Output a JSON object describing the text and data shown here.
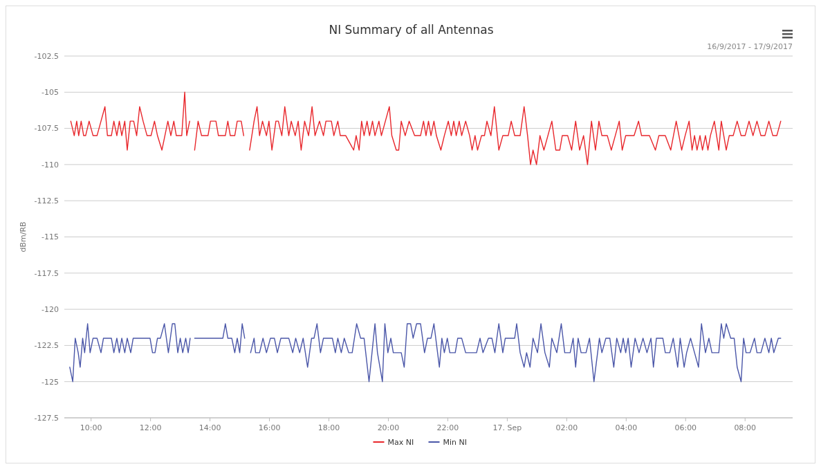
{
  "chart_data": {
    "type": "line",
    "title": "NI Summary of all Antennas",
    "subtitle": "16/9/2017 - 17/9/2017",
    "ylabel": "dBm/RB",
    "xlim": [
      "2017-09-16T09:06",
      "2017-09-17T09:36"
    ],
    "xticks": [
      {
        "value": "2017-09-16T10:00",
        "label": "10:00"
      },
      {
        "value": "2017-09-16T12:00",
        "label": "12:00"
      },
      {
        "value": "2017-09-16T14:00",
        "label": "14:00"
      },
      {
        "value": "2017-09-16T16:00",
        "label": "16:00"
      },
      {
        "value": "2017-09-16T18:00",
        "label": "18:00"
      },
      {
        "value": "2017-09-16T20:00",
        "label": "20:00"
      },
      {
        "value": "2017-09-16T22:00",
        "label": "22:00"
      },
      {
        "value": "2017-09-17T00:00",
        "label": "17. Sep"
      },
      {
        "value": "2017-09-17T02:00",
        "label": "02:00"
      },
      {
        "value": "2017-09-17T04:00",
        "label": "04:00"
      },
      {
        "value": "2017-09-17T06:00",
        "label": "06:00"
      },
      {
        "value": "2017-09-17T08:00",
        "label": "08:00"
      }
    ],
    "ylim": [
      -127.5,
      -102.5
    ],
    "yticks": [
      -127.5,
      -125,
      -122.5,
      -120,
      -117.5,
      -115,
      -112.5,
      -110,
      -107.5,
      -105,
      -102.5
    ],
    "grid": "y",
    "legend": "bottom",
    "series": [
      {
        "name": "Max NI",
        "color": "#e8262b",
        "x": [
          "2017-09-16T09:19",
          "2017-09-16T09:26",
          "2017-09-16T09:31",
          "2017-09-16T09:35",
          "2017-09-16T09:40",
          "2017-09-16T09:45",
          "2017-09-16T09:49",
          "2017-09-16T09:56",
          "2017-09-16T10:04",
          "2017-09-16T10:12",
          "2017-09-16T10:20",
          "2017-09-16T10:28",
          "2017-09-16T10:33",
          "2017-09-16T10:41",
          "2017-09-16T10:46",
          "2017-09-16T10:52",
          "2017-09-16T10:57",
          "2017-09-16T11:02",
          "2017-09-16T11:08",
          "2017-09-16T11:13",
          "2017-09-16T11:19",
          "2017-09-16T11:26",
          "2017-09-16T11:32",
          "2017-09-16T11:38",
          "2017-09-16T11:45",
          "2017-09-16T11:53",
          "2017-09-16T12:01",
          "2017-09-16T12:08",
          "2017-09-16T12:14",
          "2017-09-16T12:23",
          "2017-09-16T12:29",
          "2017-09-16T12:35",
          "2017-09-16T12:41",
          "2017-09-16T12:47",
          "2017-09-16T12:52",
          "2017-09-16T13:03",
          "2017-09-16T13:09",
          "2017-09-16T13:13",
          "2017-09-16T13:19",
          "2017-09-16T13:24",
          "2017-09-16T13:29",
          "2017-09-16T13:36",
          "2017-09-16T13:43",
          "2017-09-16T13:56",
          "2017-09-16T14:01",
          "2017-09-16T14:12",
          "2017-09-16T14:17",
          "2017-09-16T14:31",
          "2017-09-16T14:36",
          "2017-09-16T14:41",
          "2017-09-16T14:50",
          "2017-09-16T14:55",
          "2017-09-16T15:03",
          "2017-09-16T15:08",
          "2017-09-16T15:15",
          "2017-09-16T15:20",
          "2017-09-16T15:29",
          "2017-09-16T15:35",
          "2017-09-16T15:40",
          "2017-09-16T15:46",
          "2017-09-16T15:54",
          "2017-09-16T15:59",
          "2017-09-16T16:05",
          "2017-09-16T16:13",
          "2017-09-16T16:18",
          "2017-09-16T16:25",
          "2017-09-16T16:31",
          "2017-09-16T16:39",
          "2017-09-16T16:44",
          "2017-09-16T16:52",
          "2017-09-16T16:58",
          "2017-09-16T17:04",
          "2017-09-16T17:11",
          "2017-09-16T17:19",
          "2017-09-16T17:26",
          "2017-09-16T17:32",
          "2017-09-16T17:41",
          "2017-09-16T17:49",
          "2017-09-16T17:54",
          "2017-09-16T18:05",
          "2017-09-16T18:10",
          "2017-09-16T18:18",
          "2017-09-16T18:23",
          "2017-09-16T18:34",
          "2017-09-16T18:50",
          "2017-09-16T18:55",
          "2017-09-16T19:01",
          "2017-09-16T19:06",
          "2017-09-16T19:11",
          "2017-09-16T19:17",
          "2017-09-16T19:22",
          "2017-09-16T19:28",
          "2017-09-16T19:33",
          "2017-09-16T19:41",
          "2017-09-16T19:46",
          "2017-09-16T19:54",
          "2017-09-16T20:02",
          "2017-09-16T20:07",
          "2017-09-16T20:16",
          "2017-09-16T20:21",
          "2017-09-16T20:26",
          "2017-09-16T20:34",
          "2017-09-16T20:42",
          "2017-09-16T20:53",
          "2017-09-16T20:57",
          "2017-09-16T21:05",
          "2017-09-16T21:11",
          "2017-09-16T21:16",
          "2017-09-16T21:21",
          "2017-09-16T21:26",
          "2017-09-16T21:32",
          "2017-09-16T21:37",
          "2017-09-16T21:46",
          "2017-09-16T21:53",
          "2017-09-16T22:01",
          "2017-09-16T22:07",
          "2017-09-16T22:12",
          "2017-09-16T22:17",
          "2017-09-16T22:23",
          "2017-09-16T22:28",
          "2017-09-16T22:36",
          "2017-09-16T22:44",
          "2017-09-16T22:49",
          "2017-09-16T22:55",
          "2017-09-16T23:00",
          "2017-09-16T23:08",
          "2017-09-16T23:14",
          "2017-09-16T23:19",
          "2017-09-16T23:27",
          "2017-09-16T23:34",
          "2017-09-16T23:43",
          "2017-09-16T23:51",
          "2017-09-17T00:02",
          "2017-09-17T00:08",
          "2017-09-17T00:15",
          "2017-09-17T00:26",
          "2017-09-17T00:34",
          "2017-09-17T00:41",
          "2017-09-17T00:47",
          "2017-09-17T00:52",
          "2017-09-17T00:59",
          "2017-09-17T01:06",
          "2017-09-17T01:14",
          "2017-09-17T01:22",
          "2017-09-17T01:30",
          "2017-09-17T01:38",
          "2017-09-17T01:46",
          "2017-09-17T01:51",
          "2017-09-17T02:02",
          "2017-09-17T02:10",
          "2017-09-17T02:18",
          "2017-09-17T02:26",
          "2017-09-17T02:34",
          "2017-09-17T02:42",
          "2017-09-17T02:50",
          "2017-09-17T02:58",
          "2017-09-17T03:05",
          "2017-09-17T03:11",
          "2017-09-17T03:22",
          "2017-09-17T03:30",
          "2017-09-17T03:38",
          "2017-09-17T03:46",
          "2017-09-17T03:52",
          "2017-09-17T03:59",
          "2017-09-17T04:16",
          "2017-09-17T04:25",
          "2017-09-17T04:31",
          "2017-09-17T04:47",
          "2017-09-17T04:59",
          "2017-09-17T05:06",
          "2017-09-17T05:19",
          "2017-09-17T05:30",
          "2017-09-17T05:41",
          "2017-09-17T05:52",
          "2017-09-17T05:59",
          "2017-09-17T06:07",
          "2017-09-17T06:13",
          "2017-09-17T06:18",
          "2017-09-17T06:23",
          "2017-09-17T06:29",
          "2017-09-17T06:34",
          "2017-09-17T06:40",
          "2017-09-17T06:45",
          "2017-09-17T06:50",
          "2017-09-17T06:58",
          "2017-09-17T07:07",
          "2017-09-17T07:12",
          "2017-09-17T07:22",
          "2017-09-17T07:28",
          "2017-09-17T07:36",
          "2017-09-17T07:44",
          "2017-09-17T07:52",
          "2017-09-17T08:00",
          "2017-09-17T08:08",
          "2017-09-17T08:16",
          "2017-09-17T08:24",
          "2017-09-17T08:32",
          "2017-09-17T08:40",
          "2017-09-17T08:48",
          "2017-09-17T08:56",
          "2017-09-17T09:04",
          "2017-09-17T09:12"
        ],
        "values": [
          -107,
          -108,
          -107,
          -108,
          -107,
          -108,
          -108,
          -107,
          -108,
          -108,
          -107,
          -106,
          -108,
          -108,
          -107,
          -108,
          -107,
          -108,
          -107,
          -109,
          -107,
          -107,
          -108,
          -106,
          -107,
          -108,
          -108,
          -107,
          -108,
          -109,
          -108,
          -107,
          -108,
          -107,
          -108,
          -108,
          -105,
          -108,
          -107,
          null,
          -109,
          -107,
          -108,
          -108,
          -107,
          -107,
          -108,
          -108,
          -107,
          -108,
          -108,
          -107,
          -107,
          -108,
          null,
          -109,
          -107,
          -106,
          -108,
          -107,
          -108,
          -107,
          -109,
          -107,
          -107,
          -108,
          -106,
          -108,
          -107,
          -108,
          -107,
          -109,
          -107,
          -108,
          -106,
          -108,
          -107,
          -108,
          -107,
          -107,
          -108,
          -107,
          -108,
          -108,
          -109,
          -108,
          -109,
          -107,
          -108,
          -107,
          -108,
          -107,
          -108,
          -107,
          -108,
          -107,
          -106,
          -108,
          -109,
          -109,
          -107,
          -108,
          -107,
          -108,
          -108,
          -108,
          -107,
          -108,
          -107,
          -108,
          -107,
          -108,
          -109,
          -108,
          -107,
          -108,
          -107,
          -108,
          -107,
          -108,
          -107,
          -108,
          -109,
          -108,
          -109,
          -108,
          -108,
          -107,
          -108,
          -106,
          -109,
          -108,
          -108,
          -107,
          -108,
          -108,
          -106,
          -108,
          -110,
          -109,
          -110,
          -108,
          -109,
          -108,
          -107,
          -109,
          -109,
          -108,
          -108,
          -109,
          -107,
          -109,
          -108,
          -110,
          -107,
          -109,
          -107,
          -108,
          -108,
          -109,
          -108,
          -107,
          -109,
          -108,
          -108,
          -107,
          -108,
          -108,
          -109,
          -108,
          -108,
          -109,
          -107,
          -109,
          -108,
          -107,
          -109,
          -108,
          -109,
          -108,
          -109,
          -108,
          -109,
          -108,
          -107,
          -109,
          -107,
          -109,
          -108,
          -108,
          -107,
          -108,
          -108,
          -107,
          -108,
          -107,
          -108,
          -108,
          -107,
          -108,
          -108,
          -107
        ]
      },
      {
        "name": "Min NI",
        "color": "#4a56a8",
        "x": [
          "2017-09-16T09:17",
          "2017-09-16T09:23",
          "2017-09-16T09:28",
          "2017-09-16T09:34",
          "2017-09-16T09:38",
          "2017-09-16T09:43",
          "2017-09-16T09:47",
          "2017-09-16T09:53",
          "2017-09-16T09:58",
          "2017-09-16T10:04",
          "2017-09-16T10:12",
          "2017-09-16T10:20",
          "2017-09-16T10:25",
          "2017-09-16T10:41",
          "2017-09-16T10:46",
          "2017-09-16T10:52",
          "2017-09-16T10:57",
          "2017-09-16T11:02",
          "2017-09-16T11:08",
          "2017-09-16T11:13",
          "2017-09-16T11:20",
          "2017-09-16T11:25",
          "2017-09-16T11:59",
          "2017-09-16T12:04",
          "2017-09-16T12:09",
          "2017-09-16T12:14",
          "2017-09-16T12:20",
          "2017-09-16T12:28",
          "2017-09-16T12:36",
          "2017-09-16T12:44",
          "2017-09-16T12:49",
          "2017-09-16T12:55",
          "2017-09-16T13:00",
          "2017-09-16T13:05",
          "2017-09-16T13:11",
          "2017-09-16T13:16",
          "2017-09-16T13:20",
          "2017-09-16T13:24",
          "2017-09-16T13:29",
          "2017-09-16T14:26",
          "2017-09-16T14:31",
          "2017-09-16T14:36",
          "2017-09-16T14:44",
          "2017-09-16T14:50",
          "2017-09-16T14:55",
          "2017-09-16T15:00",
          "2017-09-16T15:05",
          "2017-09-16T15:10",
          "2017-09-16T15:15",
          "2017-09-16T15:22",
          "2017-09-16T15:29",
          "2017-09-16T15:32",
          "2017-09-16T15:40",
          "2017-09-16T15:47",
          "2017-09-16T15:54",
          "2017-09-16T16:02",
          "2017-09-16T16:10",
          "2017-09-16T16:16",
          "2017-09-16T16:23",
          "2017-09-16T16:39",
          "2017-09-16T16:47",
          "2017-09-16T16:53",
          "2017-09-16T17:01",
          "2017-09-16T17:08",
          "2017-09-16T17:17",
          "2017-09-16T17:25",
          "2017-09-16T17:30",
          "2017-09-16T17:36",
          "2017-09-16T17:43",
          "2017-09-16T17:49",
          "2017-09-16T18:07",
          "2017-09-16T18:13",
          "2017-09-16T18:18",
          "2017-09-16T18:25",
          "2017-09-16T18:31",
          "2017-09-16T18:40",
          "2017-09-16T18:47",
          "2017-09-16T18:56",
          "2017-09-16T19:04",
          "2017-09-16T19:11",
          "2017-09-16T19:21",
          "2017-09-16T19:33",
          "2017-09-16T19:38",
          "2017-09-16T19:48",
          "2017-09-16T19:53",
          "2017-09-16T19:59",
          "2017-09-16T20:05",
          "2017-09-16T20:10",
          "2017-09-16T20:26",
          "2017-09-16T20:32",
          "2017-09-16T20:38",
          "2017-09-16T20:45",
          "2017-09-16T20:50",
          "2017-09-16T20:57",
          "2017-09-16T21:05",
          "2017-09-16T21:13",
          "2017-09-16T21:19",
          "2017-09-16T21:26",
          "2017-09-16T21:32",
          "2017-09-16T21:43",
          "2017-09-16T21:48",
          "2017-09-16T21:53",
          "2017-09-16T21:59",
          "2017-09-16T22:04",
          "2017-09-16T22:15",
          "2017-09-16T22:20",
          "2017-09-16T22:28",
          "2017-09-16T22:36",
          "2017-09-16T22:44",
          "2017-09-16T22:58",
          "2017-09-16T23:05",
          "2017-09-16T23:11",
          "2017-09-16T23:22",
          "2017-09-16T23:29",
          "2017-09-16T23:35",
          "2017-09-16T23:43",
          "2017-09-16T23:51",
          "2017-09-16T23:56",
          "2017-09-17T00:15",
          "2017-09-17T00:19",
          "2017-09-17T00:26",
          "2017-09-17T00:34",
          "2017-09-17T00:39",
          "2017-09-17T00:46",
          "2017-09-17T00:52",
          "2017-09-17T01:01",
          "2017-09-17T01:08",
          "2017-09-17T01:16",
          "2017-09-17T01:25",
          "2017-09-17T01:30",
          "2017-09-17T01:40",
          "2017-09-17T01:49",
          "2017-09-17T01:56",
          "2017-09-17T02:07",
          "2017-09-17T02:13",
          "2017-09-17T02:18",
          "2017-09-17T02:23",
          "2017-09-17T02:29",
          "2017-09-17T02:39",
          "2017-09-17T02:46",
          "2017-09-17T02:55",
          "2017-09-17T03:06",
          "2017-09-17T03:11",
          "2017-09-17T03:19",
          "2017-09-17T03:27",
          "2017-09-17T03:35",
          "2017-09-17T03:41",
          "2017-09-17T03:49",
          "2017-09-17T03:54",
          "2017-09-17T03:59",
          "2017-09-17T04:04",
          "2017-09-17T04:10",
          "2017-09-17T04:18",
          "2017-09-17T04:26",
          "2017-09-17T04:34",
          "2017-09-17T04:42",
          "2017-09-17T04:50",
          "2017-09-17T04:55",
          "2017-09-17T05:01",
          "2017-09-17T05:14",
          "2017-09-17T05:19",
          "2017-09-17T05:28",
          "2017-09-17T05:35",
          "2017-09-17T05:44",
          "2017-09-17T05:49",
          "2017-09-17T05:57",
          "2017-09-17T06:02",
          "2017-09-17T06:10",
          "2017-09-17T06:18",
          "2017-09-17T06:26",
          "2017-09-17T06:32",
          "2017-09-17T06:40",
          "2017-09-17T06:47",
          "2017-09-17T06:53",
          "2017-09-17T07:07",
          "2017-09-17T07:12",
          "2017-09-17T07:17",
          "2017-09-17T07:22",
          "2017-09-17T07:31",
          "2017-09-17T07:38",
          "2017-09-17T07:44",
          "2017-09-17T07:52",
          "2017-09-17T07:57",
          "2017-09-17T08:02",
          "2017-09-17T08:10",
          "2017-09-17T08:19",
          "2017-09-17T08:24",
          "2017-09-17T08:32",
          "2017-09-17T08:40",
          "2017-09-17T08:48",
          "2017-09-17T08:53",
          "2017-09-17T08:58",
          "2017-09-17T09:07",
          "2017-09-17T09:12"
        ],
        "values": [
          -124,
          -125,
          -122,
          -123,
          -124,
          -122,
          -123,
          -121,
          -123,
          -122,
          -122,
          -123,
          -122,
          -122,
          -123,
          -122,
          -123,
          -122,
          -123,
          -122,
          -123,
          -122,
          -122,
          -123,
          -123,
          -122,
          -122,
          -121,
          -123,
          -121,
          -121,
          -123,
          -122,
          -123,
          -122,
          -123,
          -122,
          null,
          -122,
          -122,
          -121,
          -122,
          -122,
          -123,
          -122,
          -123,
          -121,
          -122,
          null,
          -123,
          -122,
          -123,
          -123,
          -122,
          -123,
          -122,
          -122,
          -123,
          -122,
          -122,
          -123,
          -122,
          -123,
          -122,
          -124,
          -122,
          -122,
          -121,
          -123,
          -122,
          -122,
          -123,
          -122,
          -123,
          -122,
          -123,
          -123,
          -121,
          -122,
          -122,
          -125,
          -121,
          -123,
          -125,
          -121,
          -123,
          -122,
          -123,
          -123,
          -124,
          -121,
          -121,
          -122,
          -121,
          -121,
          -123,
          -122,
          -122,
          -121,
          -124,
          -122,
          -123,
          -122,
          -123,
          -123,
          -122,
          -122,
          -123,
          -123,
          -123,
          -122,
          -123,
          -122,
          -122,
          -123,
          -121,
          -123,
          -122,
          -122,
          -121,
          -123,
          -124,
          -123,
          -124,
          -122,
          -123,
          -121,
          -123,
          -124,
          -122,
          -123,
          -121,
          -123,
          -123,
          -122,
          -124,
          -122,
          -123,
          -123,
          -122,
          -125,
          -122,
          -123,
          -122,
          -122,
          -124,
          -122,
          -123,
          -122,
          -123,
          -122,
          -124,
          -122,
          -123,
          -122,
          -123,
          -122,
          -124,
          -122,
          -122,
          -123,
          -123,
          -122,
          -124,
          -122,
          -124,
          -123,
          -122,
          -123,
          -124,
          -121,
          -123,
          -122,
          -123,
          -123,
          -121,
          -122,
          -121,
          -122,
          -122,
          -124,
          -125,
          -122,
          -123,
          -123,
          -122,
          -123,
          -123,
          -122,
          -123,
          -122,
          -123,
          -122,
          -122
        ]
      }
    ]
  }
}
